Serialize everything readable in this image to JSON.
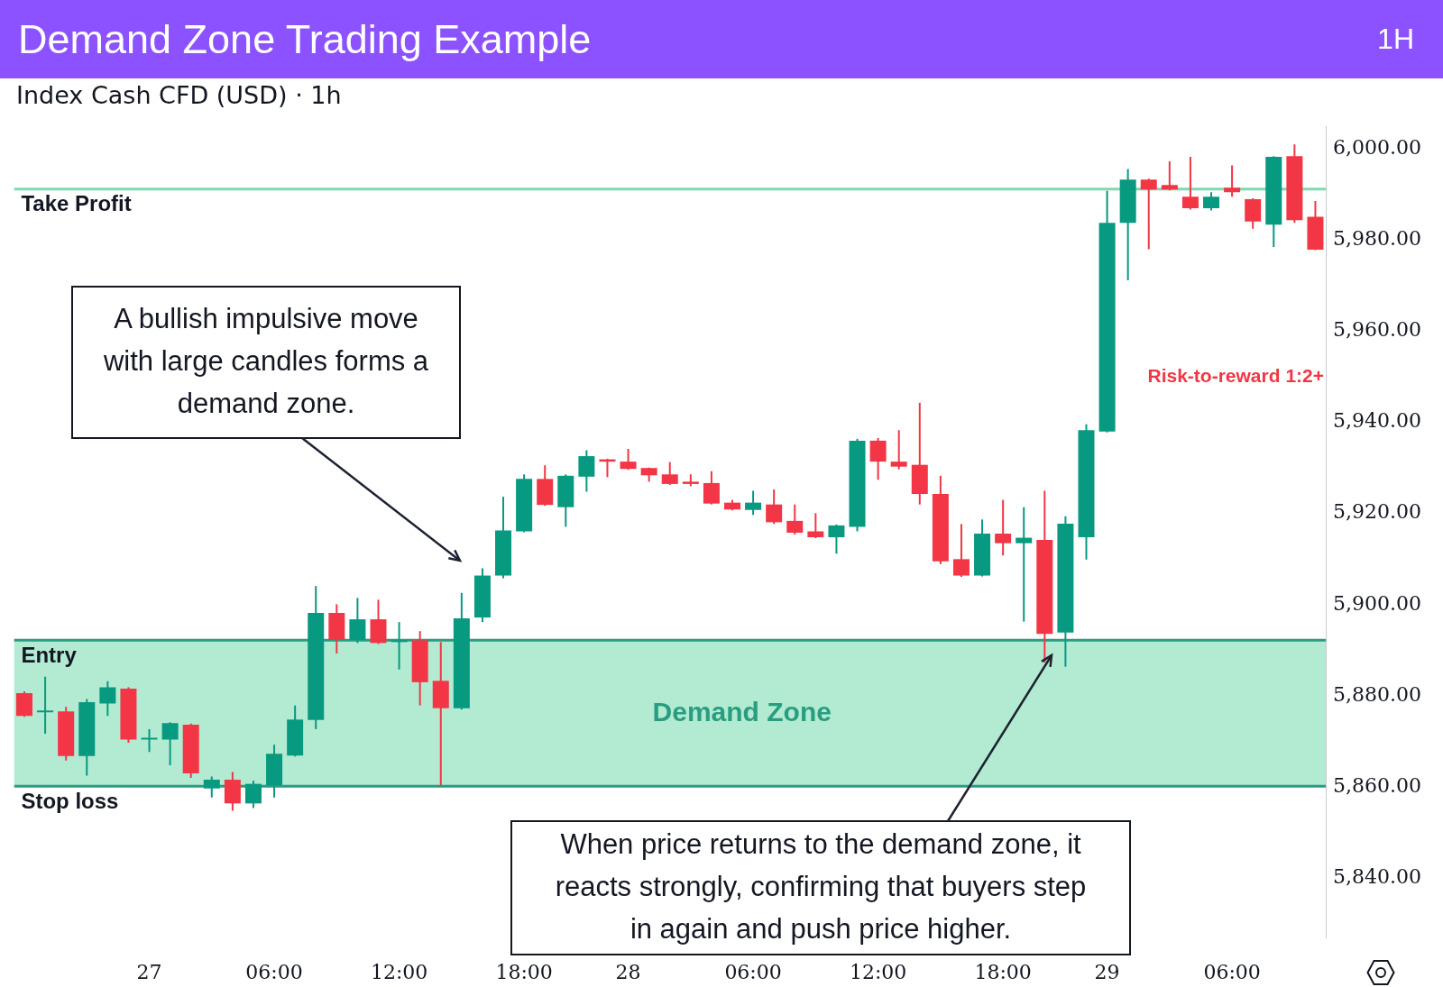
{
  "chart_data": {
    "type": "candlestick",
    "title": "Demand Zone Trading Example",
    "subtitle": "Index Cash CFD (USD) · 1h",
    "categories": [
      null,
      null,
      null,
      null,
      null,
      null,
      "27",
      null,
      null,
      null,
      null,
      null,
      "06:00",
      null,
      null,
      null,
      null,
      null,
      "12:00",
      null,
      null,
      null,
      null,
      null,
      "18:00",
      null,
      null,
      null,
      null,
      "28",
      null,
      null,
      null,
      null,
      null,
      "06:00",
      null,
      null,
      null,
      null,
      null,
      "12:00",
      null,
      null,
      null,
      null,
      null,
      "18:00",
      null,
      null,
      null,
      null,
      "29",
      null,
      null,
      null,
      null,
      null,
      "06:00",
      null,
      null,
      null,
      null
    ],
    "ohlc": [
      [
        5880.6,
        5881.0,
        5875.4,
        5875.6
      ],
      [
        5876.4,
        5884.2,
        5871.7,
        5876.6
      ],
      [
        5876.6,
        5877.6,
        5865.8,
        5866.8
      ],
      [
        5866.8,
        5879.3,
        5862.5,
        5878.6
      ],
      [
        5878.3,
        5883.2,
        5875.6,
        5881.9
      ],
      [
        5881.6,
        5881.9,
        5869.7,
        5870.4
      ],
      [
        5870.4,
        5872.7,
        5867.7,
        5870.6
      ],
      [
        5870.4,
        5874.2,
        5864.8,
        5874.0
      ],
      [
        5873.7,
        5873.9,
        5862.0,
        5863.0
      ],
      [
        5859.7,
        5862.3,
        5857.7,
        5861.6
      ],
      [
        5861.6,
        5863.3,
        5854.8,
        5856.4
      ],
      [
        5856.4,
        5861.4,
        5855.4,
        5860.7
      ],
      [
        5860.4,
        5869.3,
        5857.7,
        5867.3
      ],
      [
        5866.9,
        5877.9,
        5866.7,
        5874.8
      ],
      [
        5874.7,
        5904.1,
        5872.7,
        5898.2
      ],
      [
        5898.2,
        5900.1,
        5889.3,
        5892.3
      ],
      [
        5892.3,
        5901.5,
        5891.6,
        5896.8
      ],
      [
        5896.8,
        5901.1,
        5891.4,
        5891.6
      ],
      [
        5891.8,
        5896.2,
        5885.8,
        5892.0
      ],
      [
        5892.2,
        5894.2,
        5877.9,
        5883.0
      ],
      [
        5883.3,
        5891.8,
        5860.3,
        5877.3
      ],
      [
        5877.3,
        5902.6,
        5877.0,
        5897.0
      ],
      [
        5897.2,
        5908.0,
        5896.2,
        5906.4
      ],
      [
        5906.4,
        5923.7,
        5905.8,
        5916.3
      ],
      [
        5916.1,
        5928.6,
        5915.9,
        5927.6
      ],
      [
        5927.6,
        5930.6,
        5921.7,
        5921.9
      ],
      [
        5921.4,
        5928.6,
        5917.1,
        5928.3
      ],
      [
        5928.1,
        5933.9,
        5924.8,
        5932.6
      ],
      [
        5931.9,
        5932.0,
        5928.0,
        5931.4
      ],
      [
        5931.4,
        5934.2,
        5929.6,
        5929.8
      ],
      [
        5930.0,
        5930.1,
        5927.0,
        5928.4
      ],
      [
        5928.6,
        5931.3,
        5926.3,
        5926.5
      ],
      [
        5927.0,
        5928.6,
        5926.0,
        5926.5
      ],
      [
        5926.7,
        5929.3,
        5922.0,
        5922.2
      ],
      [
        5922.4,
        5923.0,
        5920.7,
        5920.9
      ],
      [
        5920.8,
        5925.0,
        5919.7,
        5922.4
      ],
      [
        5922.0,
        5925.3,
        5917.7,
        5918.1
      ],
      [
        5918.4,
        5922.0,
        5915.4,
        5915.8
      ],
      [
        5916.1,
        5920.1,
        5914.6,
        5914.8
      ],
      [
        5914.8,
        5917.6,
        5911.2,
        5917.4
      ],
      [
        5917.1,
        5936.4,
        5916.1,
        5936.0
      ],
      [
        5936.0,
        5936.6,
        5927.4,
        5931.4
      ],
      [
        5931.4,
        5938.3,
        5929.7,
        5930.3
      ],
      [
        5930.7,
        5944.3,
        5922.0,
        5924.3
      ],
      [
        5924.3,
        5928.3,
        5908.9,
        5909.5
      ],
      [
        5910.0,
        5917.7,
        5906.1,
        5906.4
      ],
      [
        5906.4,
        5918.7,
        5906.2,
        5915.6
      ],
      [
        5915.6,
        5923.0,
        5910.8,
        5913.5
      ],
      [
        5913.5,
        5921.4,
        5896.3,
        5914.7
      ],
      [
        5914.2,
        5925.0,
        5887.3,
        5893.6
      ],
      [
        5893.9,
        5919.4,
        5886.4,
        5917.8
      ],
      [
        5914.8,
        5939.6,
        5909.9,
        5938.3
      ],
      [
        5938.0,
        5990.8,
        5937.8,
        5983.8
      ],
      [
        5983.8,
        5995.6,
        5971.2,
        5993.3
      ],
      [
        5993.3,
        5993.5,
        5978.0,
        5991.1
      ],
      [
        5992.1,
        5997.3,
        5990.9,
        5991.1
      ],
      [
        5989.5,
        5998.3,
        5986.7,
        5987.0
      ],
      [
        5987.0,
        5990.5,
        5986.5,
        5989.5
      ],
      [
        5991.5,
        5996.4,
        5989.5,
        5990.5
      ],
      [
        5989.0,
        5989.2,
        5982.5,
        5984.1
      ],
      [
        5983.4,
        5998.4,
        5978.5,
        5998.3
      ],
      [
        5998.4,
        6001.0,
        5983.8,
        5984.4
      ],
      [
        5985.1,
        5988.6,
        5977.8,
        5977.9
      ]
    ],
    "colors": [
      "#f23645",
      "#089981",
      "#f23645",
      "#089981",
      "#089981",
      "#f23645",
      "#089981",
      "#089981",
      "#f23645",
      "#089981",
      "#f23645",
      "#089981",
      "#089981",
      "#089981",
      "#089981",
      "#f23645",
      "#089981",
      "#f23645",
      "#089981",
      "#f23645",
      "#f23645",
      "#089981",
      "#089981",
      "#089981",
      "#089981",
      "#f23645",
      "#089981",
      "#089981",
      "#f23645",
      "#f23645",
      "#f23645",
      "#f23645",
      "#f23645",
      "#f23645",
      "#f23645",
      "#089981",
      "#f23645",
      "#f23645",
      "#f23645",
      "#089981",
      "#089981",
      "#f23645",
      "#f23645",
      "#f23645",
      "#f23645",
      "#f23645",
      "#089981",
      "#f23645",
      "#089981",
      "#f23645",
      "#089981",
      "#089981",
      "#089981",
      "#089981",
      "#f23645",
      "#f23645",
      "#f23645",
      "#089981",
      "#f23645",
      "#f23645",
      "#089981",
      "#f23645",
      "#f23645"
    ],
    "ylim": [
      5827,
      6005
    ],
    "yticks": [
      {
        "value": 5840,
        "label": "5,840.00"
      },
      {
        "value": 5860,
        "label": "5,860.00"
      },
      {
        "value": 5880,
        "label": "5,880.00"
      },
      {
        "value": 5900,
        "label": "5,900.00"
      },
      {
        "value": 5920,
        "label": "5,920.00"
      },
      {
        "value": 5940,
        "label": "5,940.00"
      },
      {
        "value": 5960,
        "label": "5,960.00"
      },
      {
        "value": 5980,
        "label": "5,980.00"
      },
      {
        "value": 6000,
        "label": "6,000.00"
      }
    ],
    "bands": [
      {
        "axis": "y",
        "from": 5860.2,
        "to": 5892.2,
        "label": "Demand Zone",
        "color": "#b2ebd2"
      }
    ],
    "ref_lines": [
      {
        "axis": "y",
        "value": 5892.2,
        "label": "Entry",
        "color": "#2a9d80"
      },
      {
        "axis": "y",
        "value": 5860.2,
        "label": "Stop loss",
        "color": "#2a9d80"
      },
      {
        "axis": "y",
        "value": 5991.2,
        "label": "Take Profit",
        "color": "#7fd8b0"
      }
    ],
    "annotations": [
      "1H",
      "A bullish impulsive move with large candles forms a demand zone.",
      "When price returns to the demand zone, it reacts strongly, confirming that buyers step in again and push price higher.",
      "Risk-to-reward 1:2+"
    ]
  }
}
